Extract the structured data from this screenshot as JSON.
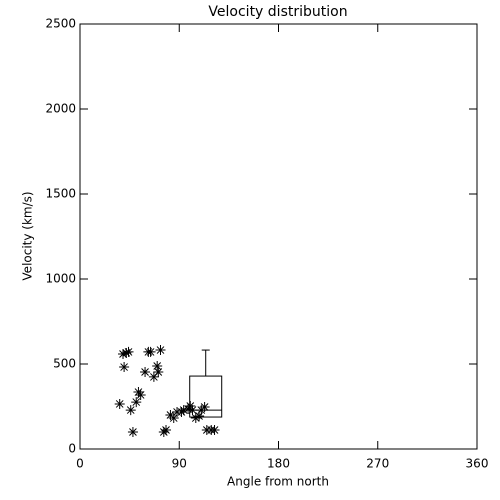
{
  "chart_data": {
    "type": "scatter",
    "title": "Velocity distribution",
    "xlabel": "Angle from north",
    "ylabel": "Velocity (km/s)",
    "xlim": [
      0,
      360
    ],
    "xticks": [
      0,
      90,
      180,
      270,
      360
    ],
    "ylim": [
      0,
      2500
    ],
    "yticks": [
      0,
      500,
      1000,
      1500,
      2000,
      2500
    ],
    "color": "#000000",
    "x": [
      36,
      39,
      42,
      44,
      40,
      46,
      48,
      51,
      53,
      55,
      59,
      62,
      64,
      67,
      70,
      71,
      73,
      76,
      78,
      82,
      85,
      88,
      92,
      94,
      98,
      100,
      102,
      105,
      108,
      110,
      113,
      115,
      119,
      122
    ],
    "values": [
      265,
      559,
      565,
      571,
      482,
      229,
      100,
      276,
      335,
      318,
      453,
      571,
      571,
      424,
      488,
      453,
      582,
      100,
      112,
      200,
      182,
      218,
      218,
      229,
      235,
      253,
      229,
      182,
      194,
      229,
      247,
      112,
      112,
      112
    ],
    "box": {
      "x": 114,
      "q1": 188,
      "median": 229,
      "q3": 429,
      "whisker_high": 582
    }
  }
}
